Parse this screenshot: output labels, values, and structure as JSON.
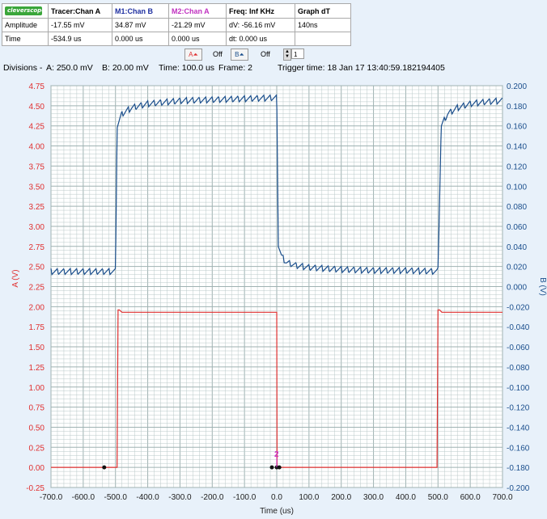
{
  "logo_text": "cleverscope",
  "table": {
    "header": [
      "Tracer:Chan A",
      "M1:Chan B",
      "M2:Chan A",
      "Freq: Inf KHz",
      "Graph dT"
    ],
    "amplitude": [
      "Amplitude",
      "-17.55 mV",
      "34.87 mV",
      "-21.29 mV",
      "dV: -56.16 mV",
      "140ns"
    ],
    "time": [
      "Time",
      "-534.9 us",
      "0.000 us",
      "0.000 us",
      "dt:  0.000 us",
      ""
    ]
  },
  "controls": {
    "a_label": "A",
    "a_state": "Off",
    "b_label": "B",
    "b_state": "Off",
    "frame_value": "1"
  },
  "divisions": {
    "prefix": "Divisions -",
    "a": "A: 250.0 mV",
    "b": "B: 20.00 mV",
    "time": "Time: 100.0 us",
    "frame": "Frame: 2",
    "trigger": "Trigger time: 18 Jan 17 13:40:59.182194405"
  },
  "colors": {
    "channel_a": "#e03030",
    "channel_b": "#1a4e8c",
    "marker_m2": "#cc33cc",
    "grid": "#b9c8c8",
    "plot_bg": "#ffffff"
  },
  "chart_data": {
    "type": "line",
    "xlabel": "Time (us)",
    "ylabel_left": "A (V)",
    "ylabel_right": "B (V)",
    "xlim": [
      -700,
      700
    ],
    "ylim_left": [
      -0.25,
      4.75
    ],
    "ylim_right": [
      -0.2,
      0.2
    ],
    "x_ticks": [
      "-700.0",
      "-600.0",
      "-500.0",
      "-400.0",
      "-300.0",
      "-200.0",
      "-100.0",
      "0.0",
      "100.0",
      "200.0",
      "300.0",
      "400.0",
      "500.0",
      "600.0",
      "700.0"
    ],
    "y_left_ticks": [
      "4.75",
      "4.50",
      "4.25",
      "4.00",
      "3.75",
      "3.50",
      "3.25",
      "3.00",
      "2.75",
      "2.50",
      "2.25",
      "2.00",
      "1.75",
      "1.50",
      "1.25",
      "1.00",
      "0.75",
      "0.50",
      "0.25",
      "0.00",
      "-0.25"
    ],
    "y_right_ticks": [
      "0.200",
      "0.180",
      "0.160",
      "0.140",
      "0.120",
      "0.100",
      "0.080",
      "0.060",
      "0.040",
      "0.020",
      "0.000",
      "-0.020",
      "-0.040",
      "-0.060",
      "-0.080",
      "-0.100",
      "-0.120",
      "-0.140",
      "-0.160",
      "-0.180",
      "-0.200"
    ],
    "grid": true,
    "series": [
      {
        "axis": "left",
        "x": [
          -700,
          -495,
          -492,
          -488,
          -480,
          0,
          1,
          497,
          500,
          505,
          512,
          700
        ],
        "y": [
          0.0,
          0.0,
          1.96,
          1.96,
          1.93,
          1.93,
          0.0,
          0.0,
          1.96,
          1.96,
          1.93,
          1.93
        ]
      },
      {
        "axis": "right",
        "x": [
          -700,
          -500,
          -495,
          -480,
          -450,
          -400,
          -300,
          -200,
          -100,
          0,
          5,
          15,
          30,
          60,
          100,
          200,
          300,
          400,
          497,
          500,
          510,
          530,
          560,
          600,
          650,
          700
        ],
        "y": [
          0.015,
          0.015,
          0.16,
          0.172,
          0.178,
          0.182,
          0.185,
          0.186,
          0.187,
          0.188,
          0.042,
          0.03,
          0.024,
          0.021,
          0.019,
          0.017,
          0.016,
          0.016,
          0.015,
          0.016,
          0.16,
          0.172,
          0.178,
          0.182,
          0.184,
          0.185
        ]
      }
    ],
    "markers": [
      {
        "label": "2",
        "x": 0,
        "y_axis": "left",
        "y": 0.0
      }
    ],
    "dots": [
      {
        "x": -534.9,
        "y": 0.0
      },
      {
        "x": -15,
        "y": 0.0
      },
      {
        "x": 0,
        "y": 0.0
      },
      {
        "x": 8,
        "y": 0.0
      }
    ]
  }
}
